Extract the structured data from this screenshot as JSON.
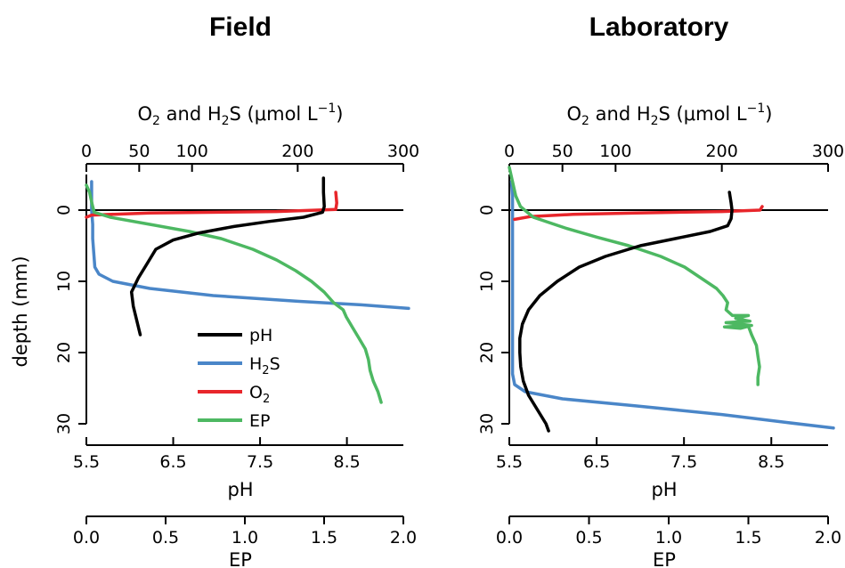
{
  "chart_data": [
    {
      "type": "line",
      "title": "Field",
      "ylabel": "depth (mm)",
      "ylim": [
        -5,
        31
      ],
      "y_ticks": [
        0,
        10,
        20,
        30
      ],
      "y_reversed": true,
      "top_axis": {
        "label": "O2 and H2S (μmol L−1)",
        "label_main": "O",
        "label_sub1": "2",
        "label_mid": " and H",
        "label_sub2": "2",
        "label_tail": "S  (μmol L",
        "label_sup": "−1",
        "label_close": ")",
        "range": [
          0,
          300
        ],
        "major_ticks": [
          0,
          100,
          200,
          300
        ],
        "minor_ticks": [
          50
        ],
        "tick_labels": [
          "0",
          "50",
          "100",
          "200",
          "300"
        ]
      },
      "bottom_axis_1": {
        "label": "pH",
        "range": [
          5.5,
          9.15
        ],
        "ticks": [
          5.5,
          6.5,
          7.5,
          8.5
        ],
        "tick_labels": [
          "5.5",
          "6.5",
          "7.5",
          "8.5"
        ]
      },
      "bottom_axis_2": {
        "label": "EP",
        "range": [
          0,
          2.0
        ],
        "ticks": [
          0,
          0.5,
          1.0,
          1.5,
          2.0
        ],
        "tick_labels": [
          "0.0",
          "0.5",
          "1.0",
          "1.5",
          "2.0"
        ]
      },
      "legend": {
        "placement": "bottom-right of plot",
        "entries": [
          {
            "series": "pH",
            "label": "pH",
            "color": "#000000"
          },
          {
            "series": "H2S",
            "label": "H2S",
            "label_main": "H",
            "label_sub": "2",
            "label_tail": "S",
            "color": "#4a86c8"
          },
          {
            "series": "O2",
            "label": "O2",
            "label_main": "O",
            "label_sub": "2",
            "label_tail": "",
            "color": "#e8262b"
          },
          {
            "series": "EP",
            "label": "EP",
            "color": "#4db862"
          }
        ]
      },
      "series": [
        {
          "name": "pH",
          "axis": "pH",
          "color": "#000000",
          "points": [
            [
              8.23,
              -4.5
            ],
            [
              8.23,
              -2.5
            ],
            [
              8.24,
              -0.5
            ],
            [
              8.22,
              0.3
            ],
            [
              8.0,
              1.0
            ],
            [
              7.6,
              1.6
            ],
            [
              7.2,
              2.3
            ],
            [
              6.8,
              3.2
            ],
            [
              6.5,
              4.2
            ],
            [
              6.3,
              5.5
            ],
            [
              6.2,
              7.5
            ],
            [
              6.1,
              9.5
            ],
            [
              6.02,
              11.5
            ],
            [
              6.04,
              13.5
            ],
            [
              6.08,
              15.5
            ],
            [
              6.12,
              17.5
            ]
          ]
        },
        {
          "name": "H2S",
          "axis": "O2 and H2S",
          "color": "#4a86c8",
          "points": [
            [
              5,
              -4
            ],
            [
              5,
              -2
            ],
            [
              5,
              0
            ],
            [
              6,
              2
            ],
            [
              6,
              4
            ],
            [
              7,
              6
            ],
            [
              8,
              8
            ],
            [
              12,
              9
            ],
            [
              25,
              10
            ],
            [
              60,
              11
            ],
            [
              120,
              12
            ],
            [
              200,
              12.8
            ],
            [
              260,
              13.3
            ],
            [
              305,
              13.8
            ]
          ]
        },
        {
          "name": "O2",
          "axis": "O2 and H2S",
          "color": "#e8262b",
          "points": [
            [
              236,
              -2.5
            ],
            [
              237,
              -1
            ],
            [
              236,
              -0.1
            ],
            [
              180,
              0.2
            ],
            [
              60,
              0.4
            ],
            [
              5,
              0.7
            ],
            [
              0,
              1.0
            ]
          ]
        },
        {
          "name": "EP",
          "axis": "EP",
          "color": "#4db862",
          "points": [
            [
              0.0,
              -3.5
            ],
            [
              0.02,
              -2.5
            ],
            [
              0.03,
              -1.5
            ],
            [
              0.04,
              -0.5
            ],
            [
              0.05,
              0.3
            ],
            [
              0.15,
              1.0
            ],
            [
              0.4,
              2.0
            ],
            [
              0.65,
              3.0
            ],
            [
              0.85,
              4.0
            ],
            [
              1.05,
              5.5
            ],
            [
              1.2,
              7.0
            ],
            [
              1.32,
              8.5
            ],
            [
              1.42,
              10.0
            ],
            [
              1.5,
              11.5
            ],
            [
              1.56,
              13.0
            ],
            [
              1.62,
              14.0
            ],
            [
              1.64,
              15.0
            ],
            [
              1.68,
              16.5
            ],
            [
              1.72,
              18.0
            ],
            [
              1.76,
              19.5
            ],
            [
              1.78,
              21.0
            ],
            [
              1.79,
              22.5
            ],
            [
              1.81,
              24.0
            ],
            [
              1.84,
              25.5
            ],
            [
              1.86,
              27.0
            ]
          ]
        }
      ]
    },
    {
      "type": "line",
      "title": "Laboratory",
      "ylabel": "",
      "ylim": [
        -5,
        31
      ],
      "y_ticks": [
        0,
        10,
        20,
        30
      ],
      "y_reversed": true,
      "top_axis": {
        "label": "O2 and H2S (μmol L−1)",
        "label_main": "O",
        "label_sub1": "2",
        "label_mid": " and H",
        "label_sub2": "2",
        "label_tail": "S  (μmol L",
        "label_sup": "−1",
        "label_close": ")",
        "range": [
          0,
          300
        ],
        "major_ticks": [
          0,
          100,
          200,
          300
        ],
        "minor_ticks": [
          50
        ],
        "tick_labels": [
          "0",
          "50",
          "100",
          "200",
          "300"
        ]
      },
      "bottom_axis_1": {
        "label": "pH",
        "range": [
          5.5,
          9.15
        ],
        "ticks": [
          5.5,
          6.5,
          7.5,
          8.5
        ],
        "tick_labels": [
          "5.5",
          "6.5",
          "7.5",
          "8.5"
        ]
      },
      "bottom_axis_2": {
        "label": "EP",
        "range": [
          0,
          2.0
        ],
        "ticks": [
          0,
          0.5,
          1.0,
          1.5,
          2.0
        ],
        "tick_labels": [
          "0.0",
          "0.5",
          "1.0",
          "1.5",
          "2.0"
        ]
      },
      "series": [
        {
          "name": "pH",
          "axis": "pH",
          "color": "#000000",
          "points": [
            [
              8.02,
              -2.5
            ],
            [
              8.04,
              -1
            ],
            [
              8.05,
              0
            ],
            [
              8.04,
              1.2
            ],
            [
              8.0,
              2.2
            ],
            [
              7.8,
              3.0
            ],
            [
              7.4,
              4.0
            ],
            [
              7.0,
              5.0
            ],
            [
              6.6,
              6.5
            ],
            [
              6.3,
              8.0
            ],
            [
              6.05,
              10.0
            ],
            [
              5.85,
              12.0
            ],
            [
              5.72,
              14.0
            ],
            [
              5.65,
              16.0
            ],
            [
              5.62,
              18.0
            ],
            [
              5.62,
              20.0
            ],
            [
              5.63,
              22.0
            ],
            [
              5.66,
              24.0
            ],
            [
              5.72,
              26.0
            ],
            [
              5.82,
              28.0
            ],
            [
              5.92,
              30.0
            ],
            [
              5.95,
              31.0
            ]
          ]
        },
        {
          "name": "H2S",
          "axis": "O2 and H2S",
          "color": "#4a86c8",
          "points": [
            [
              2,
              -4
            ],
            [
              3,
              -2
            ],
            [
              3,
              0
            ],
            [
              3,
              5
            ],
            [
              3,
              10
            ],
            [
              3,
              15
            ],
            [
              3,
              20
            ],
            [
              3,
              23
            ],
            [
              5,
              24.5
            ],
            [
              15,
              25.5
            ],
            [
              50,
              26.5
            ],
            [
              120,
              27.5
            ],
            [
              200,
              28.7
            ],
            [
              260,
              29.8
            ],
            [
              305,
              30.6
            ]
          ]
        },
        {
          "name": "O2",
          "axis": "O2 and H2S",
          "color": "#e8262b",
          "points": [
            [
              238,
              -0.5
            ],
            [
              236,
              0
            ],
            [
              200,
              0.2
            ],
            [
              120,
              0.4
            ],
            [
              60,
              0.6
            ],
            [
              20,
              0.9
            ],
            [
              5,
              1.3
            ]
          ]
        },
        {
          "name": "EP",
          "axis": "EP",
          "color": "#4db862",
          "points": [
            [
              0.0,
              -6
            ],
            [
              0.02,
              -4
            ],
            [
              0.04,
              -2
            ],
            [
              0.07,
              -0.5
            ],
            [
              0.15,
              1.0
            ],
            [
              0.35,
              2.5
            ],
            [
              0.55,
              3.8
            ],
            [
              0.75,
              5.0
            ],
            [
              0.95,
              6.5
            ],
            [
              1.1,
              8.0
            ],
            [
              1.2,
              9.5
            ],
            [
              1.3,
              11.0
            ],
            [
              1.34,
              12.0
            ],
            [
              1.37,
              13.0
            ],
            [
              1.36,
              14.0
            ],
            [
              1.4,
              14.8
            ],
            [
              1.5,
              14.8
            ],
            [
              1.42,
              15.2
            ],
            [
              1.51,
              15.6
            ],
            [
              1.36,
              15.8
            ],
            [
              1.44,
              16.0
            ],
            [
              1.52,
              16.2
            ],
            [
              1.35,
              16.4
            ],
            [
              1.45,
              16.6
            ],
            [
              1.5,
              16.3
            ],
            [
              1.52,
              17.5
            ],
            [
              1.55,
              19.0
            ],
            [
              1.56,
              20.5
            ],
            [
              1.57,
              22.0
            ],
            [
              1.56,
              23.5
            ],
            [
              1.56,
              24.5
            ]
          ]
        }
      ]
    }
  ]
}
